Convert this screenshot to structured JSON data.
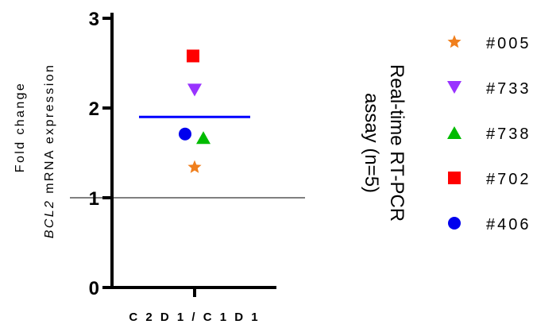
{
  "chart_data": {
    "type": "scatter",
    "categories": [
      "C2D1/C1D1"
    ],
    "category_label": "C 2 D 1 / C 1 D 1",
    "ylabel_line1": "Fold change",
    "ylabel_line2_italic": "BCL2",
    "ylabel_line2_rest": " mRNA  expression",
    "ylim": [
      0,
      3
    ],
    "yticks": [
      "0",
      "1",
      "2",
      "3"
    ],
    "reference_line": 1,
    "mean": 1.9,
    "mean_color": "#0000ff",
    "side_title_line1": "Real-time RT-PCR",
    "side_title_line2": "assay  (n=5)",
    "series": [
      {
        "name": "#005",
        "marker": "star",
        "color": "#f07f1d",
        "value": 1.34
      },
      {
        "name": "#733",
        "marker": "triangle-down",
        "color": "#9933ff",
        "value": 2.2
      },
      {
        "name": "#738",
        "marker": "triangle-up",
        "color": "#00bb00",
        "value": 1.67
      },
      {
        "name": "#702",
        "marker": "square",
        "color": "#ff0000",
        "value": 2.58
      },
      {
        "name": "#406",
        "marker": "circle",
        "color": "#0000ee",
        "value": 1.71
      }
    ],
    "legend_position": "right"
  }
}
